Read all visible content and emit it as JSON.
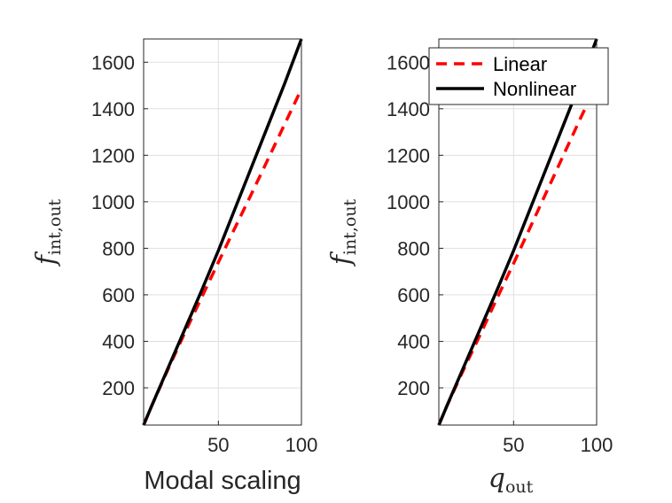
{
  "chart_data": [
    {
      "type": "line",
      "title": "",
      "xlabel": "Modal scaling",
      "ylabel": {
        "main": "f",
        "sub": "int,out"
      },
      "xlim": [
        5,
        100
      ],
      "ylim": [
        40,
        1700
      ],
      "xticks": [
        50,
        100
      ],
      "yticks": [
        200,
        400,
        600,
        800,
        1000,
        1200,
        1400,
        1600
      ],
      "grid": true,
      "series": [
        {
          "name": "Linear",
          "color": "#ff0000",
          "style": "dashed",
          "x": [
            5,
            10,
            20,
            30,
            40,
            50,
            60,
            70,
            80,
            90,
            100
          ],
          "y": [
            40,
            125,
            285,
            440,
            590,
            740,
            888,
            1035,
            1185,
            1335,
            1485
          ]
        },
        {
          "name": "Nonlinear",
          "color": "#000000",
          "style": "solid",
          "x": [
            5,
            10,
            20,
            30,
            40,
            50,
            60,
            70,
            80,
            90,
            100
          ],
          "y": [
            40,
            125,
            290,
            455,
            620,
            790,
            970,
            1150,
            1330,
            1510,
            1700
          ]
        }
      ]
    },
    {
      "type": "line",
      "title": "",
      "xlabel": {
        "main": "q",
        "sub": "out"
      },
      "ylabel": {
        "main": "f",
        "sub": "int,out"
      },
      "xlim": [
        5,
        100
      ],
      "ylim": [
        40,
        1700
      ],
      "xticks": [
        50,
        100
      ],
      "yticks": [
        200,
        400,
        600,
        800,
        1000,
        1200,
        1400,
        1600
      ],
      "grid": true,
      "legend": {
        "placement": "top-right",
        "entries": [
          "Linear",
          "Nonlinear"
        ]
      },
      "series": [
        {
          "name": "Linear",
          "color": "#ff0000",
          "style": "dashed",
          "x": [
            5,
            10,
            20,
            30,
            40,
            50,
            60,
            70,
            80,
            90,
            100
          ],
          "y": [
            40,
            125,
            280,
            430,
            585,
            735,
            890,
            1045,
            1200,
            1355,
            1505
          ]
        },
        {
          "name": "Nonlinear",
          "color": "#000000",
          "style": "solid",
          "x": [
            5,
            10,
            20,
            30,
            40,
            50,
            60,
            70,
            80,
            90,
            100
          ],
          "y": [
            40,
            125,
            290,
            455,
            620,
            790,
            970,
            1150,
            1330,
            1510,
            1700
          ]
        }
      ]
    }
  ]
}
